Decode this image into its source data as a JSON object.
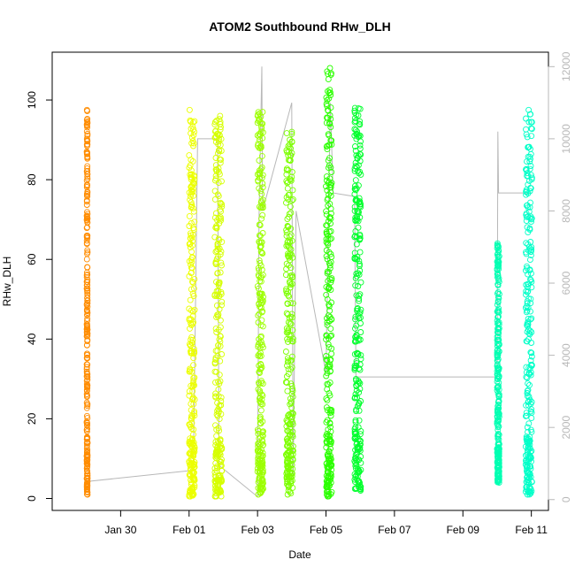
{
  "chart_data": {
    "type": "scatter",
    "title": "ATOM2 Southbound RHw_DLH",
    "xlabel": "Date",
    "ylabel": "RHw_DLH",
    "x_axis_type": "date",
    "xlim": [
      "2016-01-28T00:00",
      "2016-02-11T12:00"
    ],
    "ylim": [
      -3,
      112
    ],
    "y_ticks": [
      0,
      20,
      40,
      60,
      80,
      100
    ],
    "x_ticks": [
      {
        "date": "2016-01-30",
        "label": "Jan 30"
      },
      {
        "date": "2016-02-01",
        "label": "Feb 01"
      },
      {
        "date": "2016-02-03",
        "label": "Feb 03"
      },
      {
        "date": "2016-02-05",
        "label": "Feb 05"
      },
      {
        "date": "2016-02-07",
        "label": "Feb 07"
      },
      {
        "date": "2016-02-09",
        "label": "Feb 09"
      },
      {
        "date": "2016-02-11",
        "label": "Feb 11"
      }
    ],
    "y2lim": [
      -300,
      12400
    ],
    "y2_ticks": [
      0,
      2000,
      4000,
      6000,
      8000,
      10000,
      12000
    ],
    "y2_color": "#b8b8b8",
    "grid": false,
    "marker": "open-circle",
    "line_color": "#b8b8b8",
    "series": [
      {
        "date": "2016-01-29",
        "color": "#ff8c00",
        "x_span": [
          "2016-01-29T00:15",
          "2016-01-29T00:45"
        ],
        "y_range": [
          1,
          97.5
        ]
      },
      {
        "date": "2016-02-01",
        "color": "#ecff00",
        "x_span": [
          "2016-02-01T00:00",
          "2016-02-01T04:00"
        ],
        "y_range": [
          0.5,
          97.5
        ]
      },
      {
        "date": "2016-02-01",
        "color": "#d6ff00",
        "x_span": [
          "2016-02-01T18:00",
          "2016-02-01T23:00"
        ],
        "y_range": [
          0.5,
          96
        ]
      },
      {
        "date": "2016-02-03",
        "color": "#9cff00",
        "x_span": [
          "2016-02-03T00:00",
          "2016-02-03T04:00"
        ],
        "y_range": [
          1,
          97
        ]
      },
      {
        "date": "2016-02-03",
        "color": "#7cff00",
        "x_span": [
          "2016-02-03T20:00",
          "2016-02-04T01:00"
        ],
        "y_range": [
          1,
          92
        ]
      },
      {
        "date": "2016-02-05",
        "color": "#2bff00",
        "x_span": [
          "2016-02-05T00:00",
          "2016-02-05T04:00"
        ],
        "y_range": [
          0.5,
          108
        ]
      },
      {
        "date": "2016-02-05",
        "color": "#00ff2c",
        "x_span": [
          "2016-02-05T20:00",
          "2016-02-06T00:30"
        ],
        "y_range": [
          2,
          98
        ]
      },
      {
        "date": "2016-02-10",
        "color": "#00ffb2",
        "x_span": [
          "2016-02-10T00:00",
          "2016-02-10T01:30"
        ],
        "y_range": [
          4,
          64
        ]
      },
      {
        "date": "2016-02-10",
        "color": "#00ffc8",
        "x_span": [
          "2016-02-10T20:00",
          "2016-02-11T00:30"
        ],
        "y_range": [
          1,
          97.5
        ]
      }
    ],
    "secondary_line": [
      [
        "2016-01-29T00:00",
        500
      ],
      [
        "2016-02-01T00:00",
        800
      ],
      [
        "2016-02-01T03:00",
        850
      ],
      [
        "2016-02-01T06:00",
        10000
      ],
      [
        "2016-02-01T20:00",
        10000
      ],
      [
        "2016-02-01T21:00",
        950
      ],
      [
        "2016-02-03T00:00",
        80
      ],
      [
        "2016-02-03T01:00",
        7800
      ],
      [
        "2016-02-03T03:00",
        12000
      ],
      [
        "2016-02-03T03:30",
        8000
      ],
      [
        "2016-02-04T00:00",
        11000
      ],
      [
        "2016-02-04T01:00",
        600
      ],
      [
        "2016-02-04T03:00",
        8000
      ],
      [
        "2016-02-05T00:00",
        3500
      ],
      [
        "2016-02-05T03:00",
        11000
      ],
      [
        "2016-02-05T05:00",
        8500
      ],
      [
        "2016-02-05T20:00",
        8400
      ],
      [
        "2016-02-05T21:00",
        3400
      ],
      [
        "2016-02-10T00:00",
        3400
      ],
      [
        "2016-02-10T00:30",
        10200
      ],
      [
        "2016-02-10T01:00",
        8500
      ],
      [
        "2016-02-11T00:00",
        8500
      ]
    ]
  }
}
